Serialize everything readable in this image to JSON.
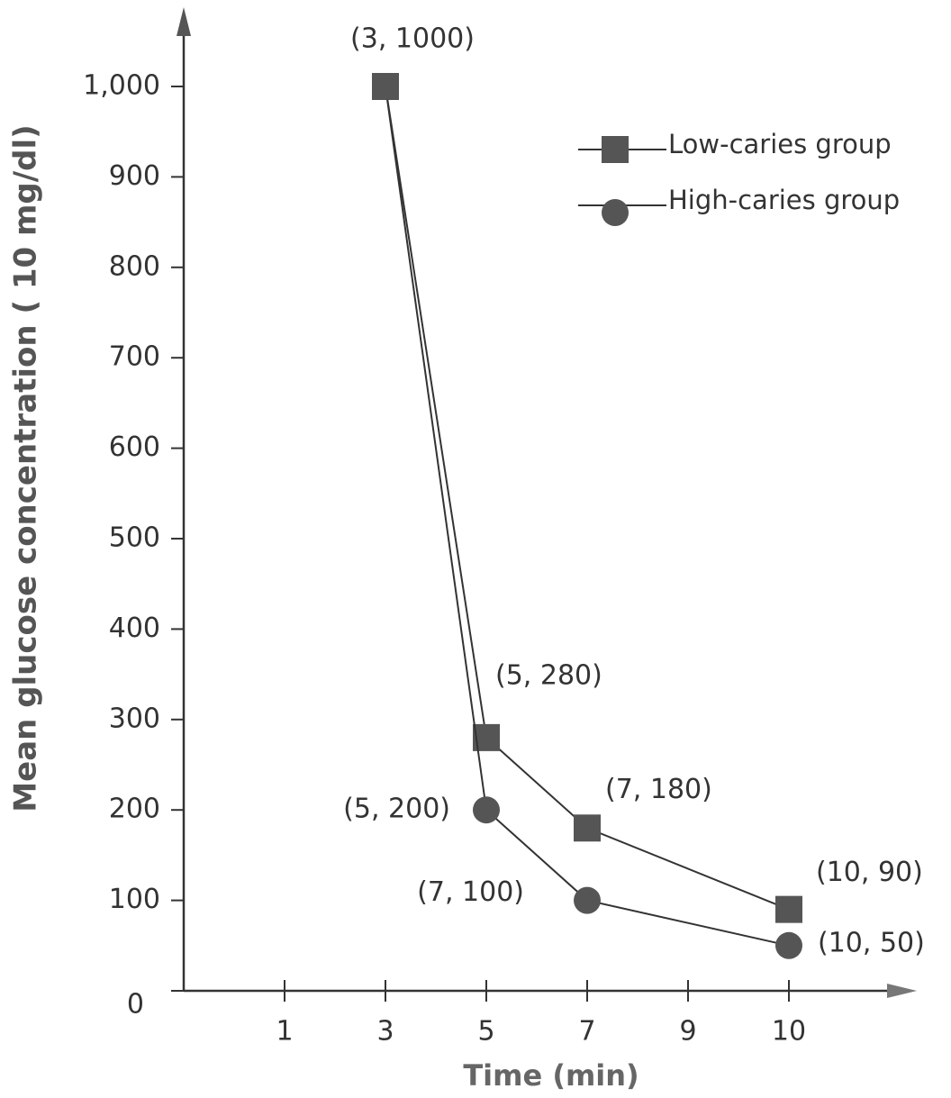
{
  "chart_data": {
    "type": "line",
    "x_label": "Time (min)",
    "y_label": "Mean glucose concentration ( 10 mg/dl)",
    "x": [
      3,
      5,
      7,
      10
    ],
    "xlim": [
      0,
      10
    ],
    "xticks": [
      1,
      3,
      5,
      7,
      9,
      10
    ],
    "ylim": [
      0,
      1000
    ],
    "yticks": [
      0,
      100,
      200,
      300,
      400,
      500,
      600,
      700,
      800,
      900,
      {
        "value": 1000,
        "label": "1,000"
      }
    ],
    "legend": "top-right",
    "series": [
      {
        "name": "Low-caries group",
        "color": "#555555",
        "marker": "square",
        "values": [
          1000,
          280,
          180,
          90
        ],
        "value_labels": [
          "(3, 1000)",
          "(5, 280)",
          "(7, 180)",
          "(10, 90)"
        ]
      },
      {
        "name": "High-caries group",
        "color": "#555555",
        "marker": "circle",
        "values": [
          1000,
          200,
          100,
          50
        ],
        "value_labels": [
          null,
          "(5, 200)",
          "(7, 100)",
          "(10, 50)"
        ]
      }
    ]
  }
}
